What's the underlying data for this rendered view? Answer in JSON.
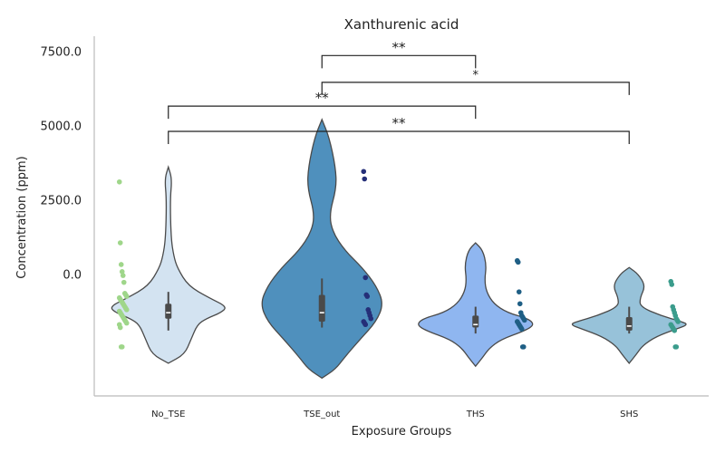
{
  "chart_data": {
    "type": "violin",
    "title": "Xanthurenic acid",
    "xlabel": "Exposure Groups",
    "ylabel": "Concentration (ppm)",
    "y_ticks": [
      {
        "value": 0,
        "label": "0.0"
      },
      {
        "value": 2500,
        "label": "2500.0"
      },
      {
        "value": 5000,
        "label": "5000.0"
      },
      {
        "value": 7500,
        "label": "7500.0"
      }
    ],
    "ylim": [
      -4100,
      8000
    ],
    "categories": [
      "No_TSE",
      "TSE_out",
      "THS",
      "SHS"
    ],
    "groups": [
      {
        "name": "No_TSE",
        "fill": "#d3e3f1",
        "point_color": "#9fd68a",
        "violin_min": -3000,
        "violin_max": 3600,
        "profile": [
          [
            3600,
            0
          ],
          [
            3200,
            4
          ],
          [
            2500,
            2
          ],
          [
            1200,
            3
          ],
          [
            600,
            6
          ],
          [
            200,
            10
          ],
          [
            -400,
            22
          ],
          [
            -800,
            45
          ],
          [
            -1100,
            65
          ],
          [
            -1300,
            58
          ],
          [
            -1500,
            42
          ],
          [
            -1700,
            32
          ],
          [
            -2200,
            25
          ],
          [
            -2700,
            18
          ],
          [
            -3000,
            0
          ]
        ],
        "box": {
          "q1": -1500,
          "q3": -1000,
          "median": -1300,
          "whisker_low": -1900,
          "whisker_high": -600
        },
        "points": [
          3100,
          1050,
          320,
          80,
          -50,
          -280,
          -650,
          -700,
          -750,
          -800,
          -850,
          -900,
          -950,
          -1000,
          -1050,
          -1100,
          -1150,
          -1200,
          -1250,
          -1300,
          -1350,
          -1400,
          -1450,
          -1500,
          -1550,
          -1600,
          -1650,
          -1700,
          -1800,
          -2450,
          -2450
        ]
      },
      {
        "name": "TSE_out",
        "fill": "#4f90bd",
        "point_color": "#252f78",
        "violin_min": -3500,
        "violin_max": 5200,
        "profile": [
          [
            5200,
            0
          ],
          [
            4600,
            8
          ],
          [
            3600,
            15
          ],
          [
            2900,
            16
          ],
          [
            2000,
            8
          ],
          [
            1400,
            12
          ],
          [
            800,
            25
          ],
          [
            200,
            45
          ],
          [
            -400,
            60
          ],
          [
            -1000,
            68
          ],
          [
            -1600,
            60
          ],
          [
            -2200,
            42
          ],
          [
            -2800,
            25
          ],
          [
            -3200,
            15
          ],
          [
            -3500,
            0
          ]
        ],
        "box": {
          "q1": -1600,
          "q3": -700,
          "median": -1300,
          "whisker_low": -1800,
          "whisker_high": -150
        },
        "points": [
          3450,
          3200,
          -120,
          -700,
          -750,
          -1200,
          -1300,
          -1400,
          -1500,
          -1600,
          -1650,
          -1700
        ]
      },
      {
        "name": "THS",
        "fill": "#8fb6f0",
        "point_color": "#1f5f85",
        "violin_min": -3100,
        "violin_max": 1050,
        "profile": [
          [
            1050,
            0
          ],
          [
            800,
            8
          ],
          [
            300,
            12
          ],
          [
            -200,
            10
          ],
          [
            -600,
            12
          ],
          [
            -1000,
            20
          ],
          [
            -1300,
            35
          ],
          [
            -1500,
            58
          ],
          [
            -1700,
            65
          ],
          [
            -1900,
            55
          ],
          [
            -2200,
            28
          ],
          [
            -2500,
            15
          ],
          [
            -2800,
            8
          ],
          [
            -3100,
            0
          ]
        ],
        "box": {
          "q1": -1800,
          "q3": -1400,
          "median": -1700,
          "whisker_low": -2000,
          "whisker_high": -1100
        },
        "points": [
          450,
          400,
          -600,
          -1000,
          -1300,
          -1400,
          -1450,
          -1500,
          -1550,
          -1600,
          -1650,
          -1700,
          -1750,
          -1800,
          -1850,
          -2450,
          -2450
        ]
      },
      {
        "name": "SHS",
        "fill": "#97c2d9",
        "point_color": "#3b9c8c",
        "violin_min": -3000,
        "violin_max": 220,
        "profile": [
          [
            220,
            0
          ],
          [
            0,
            10
          ],
          [
            -400,
            18
          ],
          [
            -800,
            12
          ],
          [
            -1100,
            12
          ],
          [
            -1400,
            35
          ],
          [
            -1600,
            58
          ],
          [
            -1700,
            65
          ],
          [
            -1850,
            52
          ],
          [
            -2100,
            30
          ],
          [
            -2400,
            15
          ],
          [
            -2700,
            8
          ],
          [
            -3000,
            0
          ]
        ],
        "box": {
          "q1": -1900,
          "q3": -1450,
          "median": -1750,
          "whisker_low": -2000,
          "whisker_high": -1100
        },
        "points": [
          -250,
          -350,
          -1100,
          -1200,
          -1300,
          -1400,
          -1500,
          -1550,
          -1600,
          -1700,
          -1750,
          -1800,
          -1850,
          -1900,
          -2450,
          -2450
        ]
      }
    ],
    "significance": [
      {
        "from": "TSE_out",
        "to": "THS",
        "label": "**",
        "y": 7350
      },
      {
        "from": "TSE_out",
        "to": "SHS",
        "label": "*",
        "y": 6450
      },
      {
        "from": "No_TSE",
        "to": "THS",
        "label": "**",
        "y": 5650
      },
      {
        "from": "No_TSE",
        "to": "SHS",
        "label": "**",
        "y": 4800
      }
    ]
  }
}
